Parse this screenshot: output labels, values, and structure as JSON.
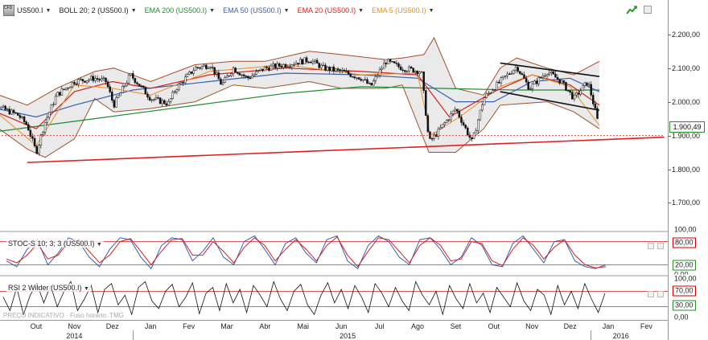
{
  "toolbar": {
    "symbol_logo_text": "CFD SP500",
    "symbol": "US500.I",
    "indicators": [
      {
        "label": "BOLL 20; 2 (US500.I)",
        "color": "#222222"
      },
      {
        "label": "EMA 200 (US500.I)",
        "color": "#1e8a2e"
      },
      {
        "label": "EMA 50 (US500.I)",
        "color": "#3a5fb0"
      },
      {
        "label": "EMA 20 (US500.I)",
        "color": "#d42020"
      },
      {
        "label": "EMA 5 (US500.I)",
        "color": "#e69020"
      }
    ],
    "icons": [
      "trend-icon",
      "restore-icon"
    ]
  },
  "price_axis": {
    "labels": [
      "2.200,00",
      "2.100,00",
      "2.000,00",
      "1.900,00",
      "1.800,00",
      "1.700,00"
    ],
    "current_price": "1.900,49"
  },
  "stochastic": {
    "label": "STOC-S 10; 3; 3 (US500.I)",
    "levels": [
      "100,00",
      "80,00",
      "20,00",
      "0,00"
    ]
  },
  "rsi": {
    "label": "RSI 2 Wilder (US500.I)",
    "levels": [
      "100,00",
      "70,00",
      "30,00",
      "0,00"
    ]
  },
  "footer_note": "PREÇO INDICATIVO · Fuso horário: TMG",
  "time_axis": {
    "months": [
      "Out",
      "Nov",
      "Dez",
      "Jan",
      "Fev",
      "Mar",
      "Abr",
      "Mai",
      "Jun",
      "Jul",
      "Ago",
      "Set",
      "Out",
      "Nov",
      "Dez",
      "Jan",
      "Fev"
    ],
    "years": [
      "2014",
      "2015",
      "2016"
    ]
  },
  "chart_data": {
    "type": "candlestick",
    "symbol": "US500.I",
    "x_unit": "month",
    "ylim": [
      1620,
      2240
    ],
    "months": [
      "2014-10",
      "2014-11",
      "2014-12",
      "2015-01",
      "2015-02",
      "2015-03",
      "2015-04",
      "2015-05",
      "2015-06",
      "2015-07",
      "2015-08",
      "2015-09",
      "2015-10",
      "2015-11",
      "2015-12",
      "2016-01",
      "2016-02"
    ],
    "close_series": {
      "x": [
        "2014-09-01",
        "2014-09-15",
        "2014-10-01",
        "2014-10-08",
        "2014-10-15",
        "2014-10-22",
        "2014-11-01",
        "2014-11-15",
        "2014-12-01",
        "2014-12-10",
        "2014-12-16",
        "2014-12-29",
        "2015-01-05",
        "2015-01-15",
        "2015-01-29",
        "2015-02-05",
        "2015-02-20",
        "2015-03-02",
        "2015-03-11",
        "2015-03-20",
        "2015-04-01",
        "2015-04-15",
        "2015-05-01",
        "2015-05-20",
        "2015-06-01",
        "2015-06-15",
        "2015-07-01",
        "2015-07-08",
        "2015-07-20",
        "2015-08-03",
        "2015-08-18",
        "2015-08-24",
        "2015-09-01",
        "2015-09-15",
        "2015-09-28",
        "2015-10-07",
        "2015-10-20",
        "2015-11-03",
        "2015-11-13",
        "2015-11-27",
        "2015-12-08",
        "2015-12-18",
        "2015-12-29",
        "2016-01-05",
        "2016-01-08"
      ],
      "y": [
        2010,
        1985,
        1960,
        1930,
        1850,
        1940,
        2020,
        2060,
        2070,
        2060,
        1990,
        2080,
        2055,
        2010,
        1995,
        2040,
        2100,
        2110,
        2050,
        2100,
        2070,
        2100,
        2110,
        2125,
        2100,
        2090,
        2070,
        2045,
        2120,
        2100,
        2090,
        1880,
        1910,
        1980,
        1880,
        2010,
        2060,
        2105,
        2040,
        2090,
        2060,
        2010,
        2060,
        1970,
        1920
      ]
    },
    "bollinger_upper": {
      "x": [
        "2014-09-01",
        "2014-10-08",
        "2014-11-01",
        "2014-12-01",
        "2014-12-16",
        "2015-01-15",
        "2015-02-20",
        "2015-03-20",
        "2015-04-15",
        "2015-05-20",
        "2015-06-15",
        "2015-07-20",
        "2015-08-03",
        "2015-08-20",
        "2015-08-28",
        "2015-09-15",
        "2015-10-07",
        "2015-10-20",
        "2015-11-03",
        "2015-11-27",
        "2015-12-18",
        "2016-01-08"
      ],
      "y": [
        2040,
        1990,
        2040,
        2090,
        2100,
        2060,
        2110,
        2120,
        2120,
        2150,
        2140,
        2125,
        2130,
        2140,
        2190,
        2040,
        2020,
        2100,
        2130,
        2100,
        2080,
        2120
      ]
    },
    "bollinger_lower": {
      "x": [
        "2014-09-01",
        "2014-10-08",
        "2014-10-22",
        "2014-11-15",
        "2014-12-01",
        "2014-12-16",
        "2015-01-15",
        "2015-02-20",
        "2015-03-20",
        "2015-04-15",
        "2015-05-20",
        "2015-06-15",
        "2015-07-20",
        "2015-08-03",
        "2015-08-24",
        "2015-09-15",
        "2015-10-07",
        "2015-10-20",
        "2015-11-27",
        "2015-12-18",
        "2016-01-08"
      ],
      "y": [
        1960,
        1860,
        1835,
        1890,
        2010,
        1970,
        1980,
        2000,
        2050,
        2040,
        2060,
        2040,
        2040,
        2050,
        1850,
        1850,
        1920,
        1990,
        2000,
        1970,
        1920
      ]
    },
    "ema_200": {
      "x": [
        "2014-09-01",
        "2014-11-01",
        "2015-01-01",
        "2015-03-01",
        "2015-05-01",
        "2015-07-01",
        "2015-09-01",
        "2015-11-01",
        "2016-01-08"
      ],
      "y": [
        1905,
        1935,
        1965,
        1995,
        2025,
        2045,
        2040,
        2035,
        2035
      ]
    },
    "ema_50": {
      "x": [
        "2014-09-01",
        "2014-10-15",
        "2014-11-15",
        "2015-01-01",
        "2015-03-01",
        "2015-05-01",
        "2015-07-01",
        "2015-08-15",
        "2015-09-15",
        "2015-10-15",
        "2015-11-15",
        "2015-12-15",
        "2016-01-08"
      ],
      "y": [
        1990,
        1955,
        1990,
        2035,
        2060,
        2085,
        2080,
        2070,
        2000,
        2000,
        2060,
        2070,
        2030
      ]
    },
    "ema_20": {
      "x": [
        "2014-09-01",
        "2014-10-15",
        "2014-11-15",
        "2014-12-15",
        "2015-01-15",
        "2015-03-01",
        "2015-05-01",
        "2015-07-01",
        "2015-08-15",
        "2015-09-10",
        "2015-10-15",
        "2015-11-15",
        "2015-12-15",
        "2016-01-08"
      ],
      "y": [
        1990,
        1920,
        2030,
        2060,
        2040,
        2080,
        2100,
        2090,
        2080,
        1955,
        2030,
        2080,
        2050,
        1990
      ]
    },
    "ema_5": {
      "x": [
        "2014-09-01",
        "2014-10-15",
        "2014-11-15",
        "2014-12-15",
        "2015-01-15",
        "2015-03-01",
        "2015-05-01",
        "2015-07-01",
        "2015-08-15",
        "2015-08-25",
        "2015-09-20",
        "2015-10-20",
        "2015-11-15",
        "2015-12-15",
        "2016-01-08"
      ],
      "y": [
        2010,
        1870,
        2050,
        2040,
        2020,
        2090,
        2110,
        2080,
        2085,
        1900,
        1960,
        2045,
        2080,
        2045,
        1930
      ]
    },
    "trendlines": [
      {
        "name": "support",
        "color": "#e02020",
        "x": [
          "2014-10-08",
          "2016-02-29"
        ],
        "y": [
          1820,
          1895
        ]
      },
      {
        "name": "channel-upper",
        "color": "#111111",
        "x": [
          "2015-10-20",
          "2016-01-08"
        ],
        "y": [
          2115,
          2075
        ]
      },
      {
        "name": "channel-lower",
        "color": "#111111",
        "x": [
          "2015-10-20",
          "2016-01-08"
        ],
        "y": [
          2030,
          1975
        ]
      },
      {
        "name": "reference",
        "color": "#e02020",
        "x": [
          "2014-08-25",
          "2016-02-29"
        ],
        "y": [
          1900.49,
          1900.49
        ]
      }
    ],
    "stochastic": {
      "ylim": [
        0,
        100
      ],
      "levels": [
        80,
        20
      ],
      "k": [
        30,
        15,
        60,
        85,
        20,
        50,
        90,
        80,
        40,
        15,
        60,
        90,
        85,
        40,
        10,
        70,
        90,
        85,
        30,
        55,
        90,
        40,
        20,
        80,
        95,
        60,
        20,
        75,
        90,
        50,
        25,
        85,
        95,
        30,
        10,
        70,
        95,
        80,
        40,
        20,
        85,
        90,
        60,
        20,
        40,
        90,
        70,
        20,
        15,
        75,
        95,
        60,
        25,
        80,
        85,
        30,
        15,
        10,
        20
      ],
      "d": [
        35,
        25,
        45,
        75,
        35,
        45,
        80,
        85,
        55,
        25,
        45,
        80,
        88,
        55,
        20,
        55,
        85,
        88,
        45,
        45,
        80,
        55,
        25,
        65,
        90,
        70,
        30,
        60,
        85,
        60,
        30,
        70,
        92,
        45,
        15,
        55,
        90,
        85,
        55,
        25,
        70,
        90,
        70,
        30,
        35,
        80,
        75,
        30,
        18,
        60,
        90,
        70,
        35,
        65,
        85,
        45,
        20,
        12,
        15
      ]
    },
    "rsi": {
      "ylim": [
        0,
        100
      ],
      "levels": [
        70,
        30
      ],
      "values": [
        55,
        20,
        80,
        10,
        60,
        90,
        40,
        85,
        30,
        70,
        95,
        20,
        50,
        85,
        15,
        75,
        90,
        35,
        60,
        10,
        80,
        95,
        45,
        25,
        70,
        88,
        30,
        55,
        92,
        12,
        65,
        80,
        20,
        90,
        40,
        75,
        15,
        85,
        60,
        30,
        95,
        50,
        20,
        70,
        88,
        35,
        10,
        60,
        92,
        40,
        75,
        25,
        85,
        55,
        15,
        90,
        65,
        30,
        80,
        45,
        20,
        95,
        60,
        35,
        70,
        10,
        85,
        50,
        25,
        90,
        40,
        65,
        15,
        80,
        55,
        30,
        92,
        45,
        20,
        75,
        60,
        10,
        85,
        35,
        70,
        25,
        90,
        50,
        15,
        65
      ]
    }
  }
}
